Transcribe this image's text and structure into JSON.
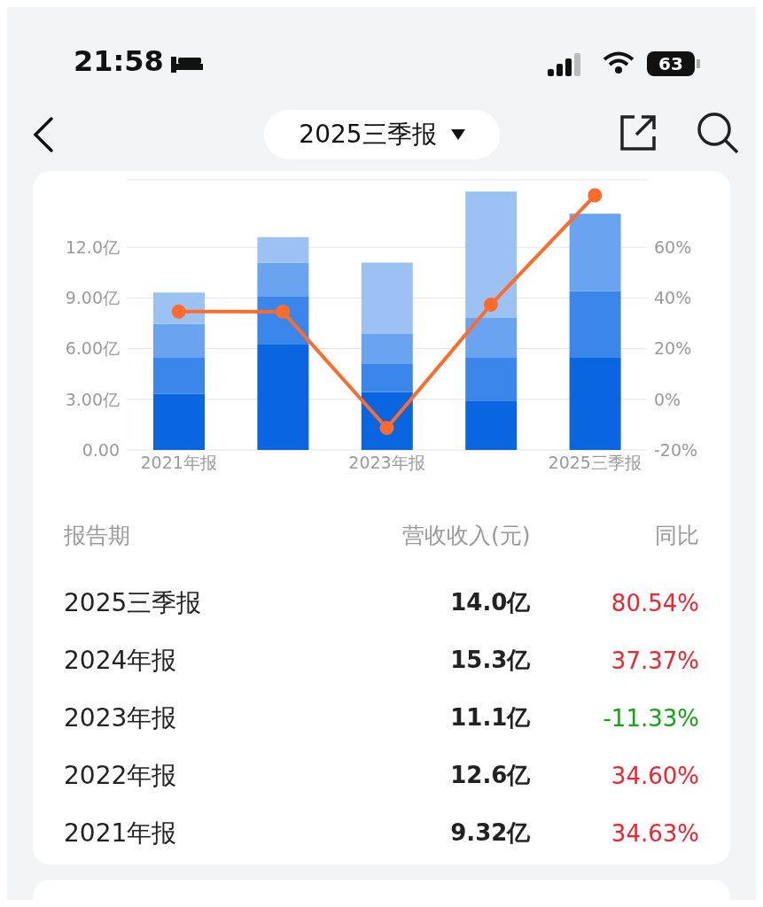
{
  "chart_data": [
    {
      "type": "bar",
      "title": "2025三季报",
      "stacked": true,
      "categories": [
        "2021年报",
        null,
        "2023年报",
        null,
        "2025三季报"
      ],
      "series": [
        {
          "color": "#0a66e0",
          "values": [
            3.32,
            6.28,
            3.43,
            2.92,
            5.45
          ]
        },
        {
          "color": "#3a86ea",
          "values": [
            2.13,
            2.84,
            1.7,
            2.53,
            3.95
          ]
        },
        {
          "color": "#6aa4f0",
          "values": [
            2.01,
            1.97,
            1.74,
            2.37,
            4.6
          ]
        },
        {
          "color": "#9cc2f4",
          "values": [
            1.86,
            1.51,
            4.23,
            7.48,
            null
          ]
        },
        {
          "type": "line",
          "axis": "y2",
          "color": "#ff6b2b",
          "marker": "circle",
          "values": [
            34.63,
            34.6,
            -11.33,
            37.37,
            80.54
          ]
        }
      ],
      "ylim": [
        0,
        16
      ],
      "yticks": [
        {
          "value": 0,
          "label": "0.00"
        },
        {
          "value": 3,
          "label": "3.00亿"
        },
        {
          "value": 6,
          "label": "6.00亿"
        },
        {
          "value": 9,
          "label": "9.00亿"
        },
        {
          "value": 12,
          "label": "12.0亿"
        }
      ],
      "y2lim": [
        -20,
        86.67
      ],
      "y2ticks": [
        {
          "value": -20,
          "label": "-20%"
        },
        {
          "value": 0,
          "label": "0%"
        },
        {
          "value": 20,
          "label": "20%"
        },
        {
          "value": 40,
          "label": "40%"
        },
        {
          "value": 60,
          "label": "60%"
        }
      ],
      "grid": "y",
      "annotations": [
        "21:58",
        "63"
      ]
    },
    {
      "type": "heatmap",
      "ylabel": "报告期",
      "categories": [
        "营收收入(元)",
        "同比"
      ],
      "y_categories": [
        "2025三季报",
        "2024年报",
        "2023年报",
        "2022年报",
        "2021年报"
      ],
      "cells": [
        [
          "14.0亿",
          "80.54%"
        ],
        [
          "15.3亿",
          "37.37%"
        ],
        [
          "11.1亿",
          "-11.33%"
        ],
        [
          "12.6亿",
          "34.60%"
        ],
        [
          "9.32亿",
          "34.63%"
        ]
      ]
    }
  ]
}
